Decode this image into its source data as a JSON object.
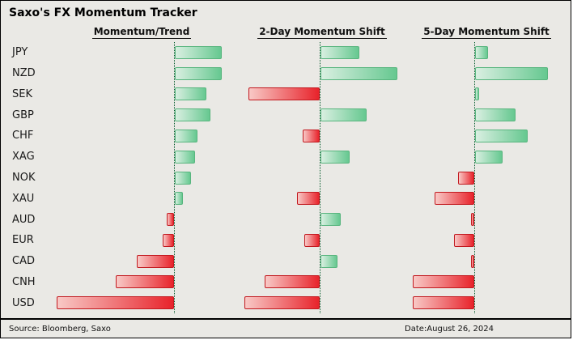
{
  "chart_data": {
    "type": "bar",
    "orientation": "horizontal",
    "title": "Saxo's FX Momentum Tracker",
    "categories": [
      "JPY",
      "NZD",
      "SEK",
      "GBP",
      "CHF",
      "XAG",
      "NOK",
      "XAU",
      "AUD",
      "EUR",
      "CAD",
      "CNH",
      "USD"
    ],
    "panels": [
      {
        "label": "Momentum/Trend",
        "values": [
          0.4,
          0.4,
          0.27,
          0.3,
          0.19,
          0.17,
          0.14,
          0.07,
          -0.06,
          -0.1,
          -0.32,
          -0.5,
          -1.0
        ]
      },
      {
        "label": "2-Day Momentum Shift",
        "values": [
          0.5,
          1.0,
          -0.93,
          0.6,
          -0.22,
          0.38,
          0.0,
          -0.3,
          0.26,
          -0.2,
          0.22,
          -0.72,
          -0.98
        ]
      },
      {
        "label": "5-Day Momentum Shift",
        "values": [
          0.18,
          1.0,
          0.05,
          0.55,
          0.72,
          0.38,
          -0.22,
          -0.55,
          -0.05,
          -0.28,
          -0.05,
          -0.85,
          -0.85
        ]
      }
    ],
    "xlim": [
      -1,
      1
    ],
    "grid": "zero-line-only",
    "legend": "none",
    "colors": {
      "positive": "#66c890",
      "negative": "#e8232b",
      "zero_line": "#055c2d",
      "background": "#eae9e5"
    },
    "footer": {
      "source": "Source: Bloomberg, Saxo",
      "date": "Date:August 26, 2024"
    }
  }
}
